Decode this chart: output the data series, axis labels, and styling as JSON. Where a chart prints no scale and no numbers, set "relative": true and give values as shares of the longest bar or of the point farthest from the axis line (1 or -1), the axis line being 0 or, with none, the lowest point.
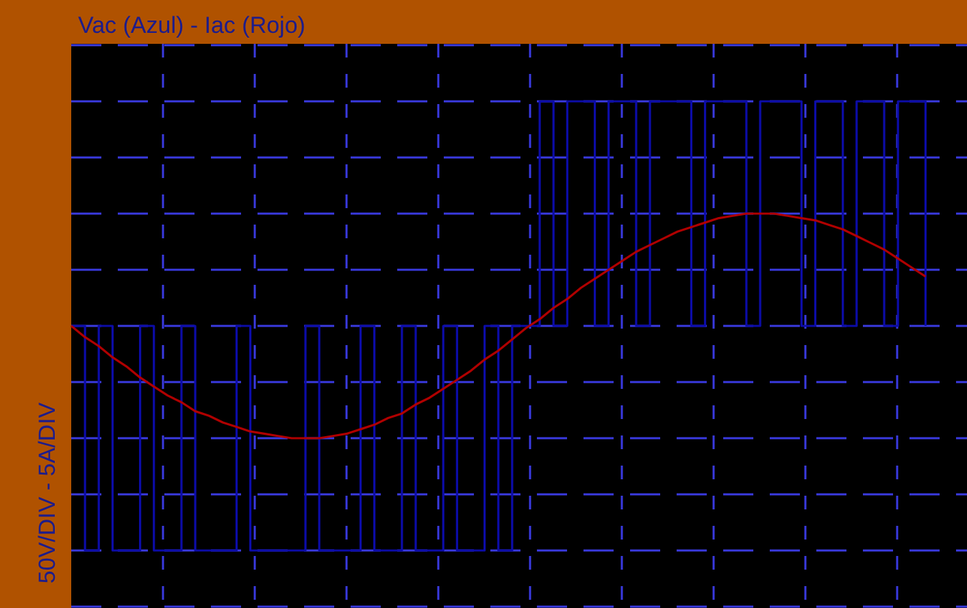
{
  "chart_data": {
    "type": "line",
    "title": "Vac (Azul) - Iac (Rojo)",
    "ylabel": "50V/DIV - 5A/DIV",
    "relative": true,
    "grid": true,
    "categories": [
      null,
      null,
      null,
      null,
      null,
      null,
      null,
      null,
      null,
      null,
      null,
      null,
      null,
      null,
      null,
      null,
      null,
      null,
      null,
      null,
      null,
      null,
      null,
      null,
      null,
      null,
      null,
      null,
      null,
      null,
      null,
      null,
      null,
      null,
      null,
      null,
      null,
      null,
      null,
      null,
      null,
      null,
      null,
      null,
      null,
      null,
      null,
      null,
      null,
      null,
      null,
      null,
      null,
      null,
      null,
      null,
      null,
      null,
      null,
      null,
      null,
      null,
      null,
      null,
      null,
      null
    ],
    "series": [
      {
        "type": "step",
        "color": "#0c0ca8",
        "values": [
          0,
          -1,
          0,
          -1,
          -1,
          0,
          -1,
          -1,
          0,
          -1,
          -1,
          -1,
          0,
          -1,
          -1,
          -1,
          -1,
          0,
          -1,
          -1,
          -1,
          0,
          -1,
          -1,
          0,
          -1,
          -1,
          0,
          -1,
          -1,
          0,
          -1,
          0,
          0,
          1,
          0,
          1,
          1,
          0,
          1,
          1,
          0,
          1,
          1,
          1,
          0,
          1,
          1,
          1,
          0,
          1,
          1,
          1,
          0,
          1,
          1,
          0,
          1,
          1,
          0,
          1,
          1,
          0,
          null,
          null,
          null
        ]
      },
      {
        "color": "#b00000",
        "values": [
          0,
          -0.05,
          -0.09,
          -0.14,
          -0.18,
          -0.23,
          -0.27,
          -0.31,
          -0.34,
          -0.38,
          -0.4,
          -0.43,
          -0.45,
          -0.47,
          -0.48,
          -0.49,
          -0.5,
          -0.5,
          -0.5,
          -0.49,
          -0.48,
          -0.46,
          -0.44,
          -0.41,
          -0.39,
          -0.35,
          -0.32,
          -0.28,
          -0.24,
          -0.2,
          -0.15,
          -0.11,
          -0.06,
          -0.01,
          0.03,
          0.08,
          0.12,
          0.17,
          0.21,
          0.25,
          0.29,
          0.33,
          0.36,
          0.39,
          0.42,
          0.44,
          0.46,
          0.48,
          0.49,
          0.5,
          0.5,
          0.5,
          0.49,
          0.48,
          0.47,
          0.45,
          0.43,
          0.4,
          0.37,
          0.34,
          0.3,
          0.26,
          0.22,
          null,
          null,
          null
        ]
      }
    ]
  }
}
